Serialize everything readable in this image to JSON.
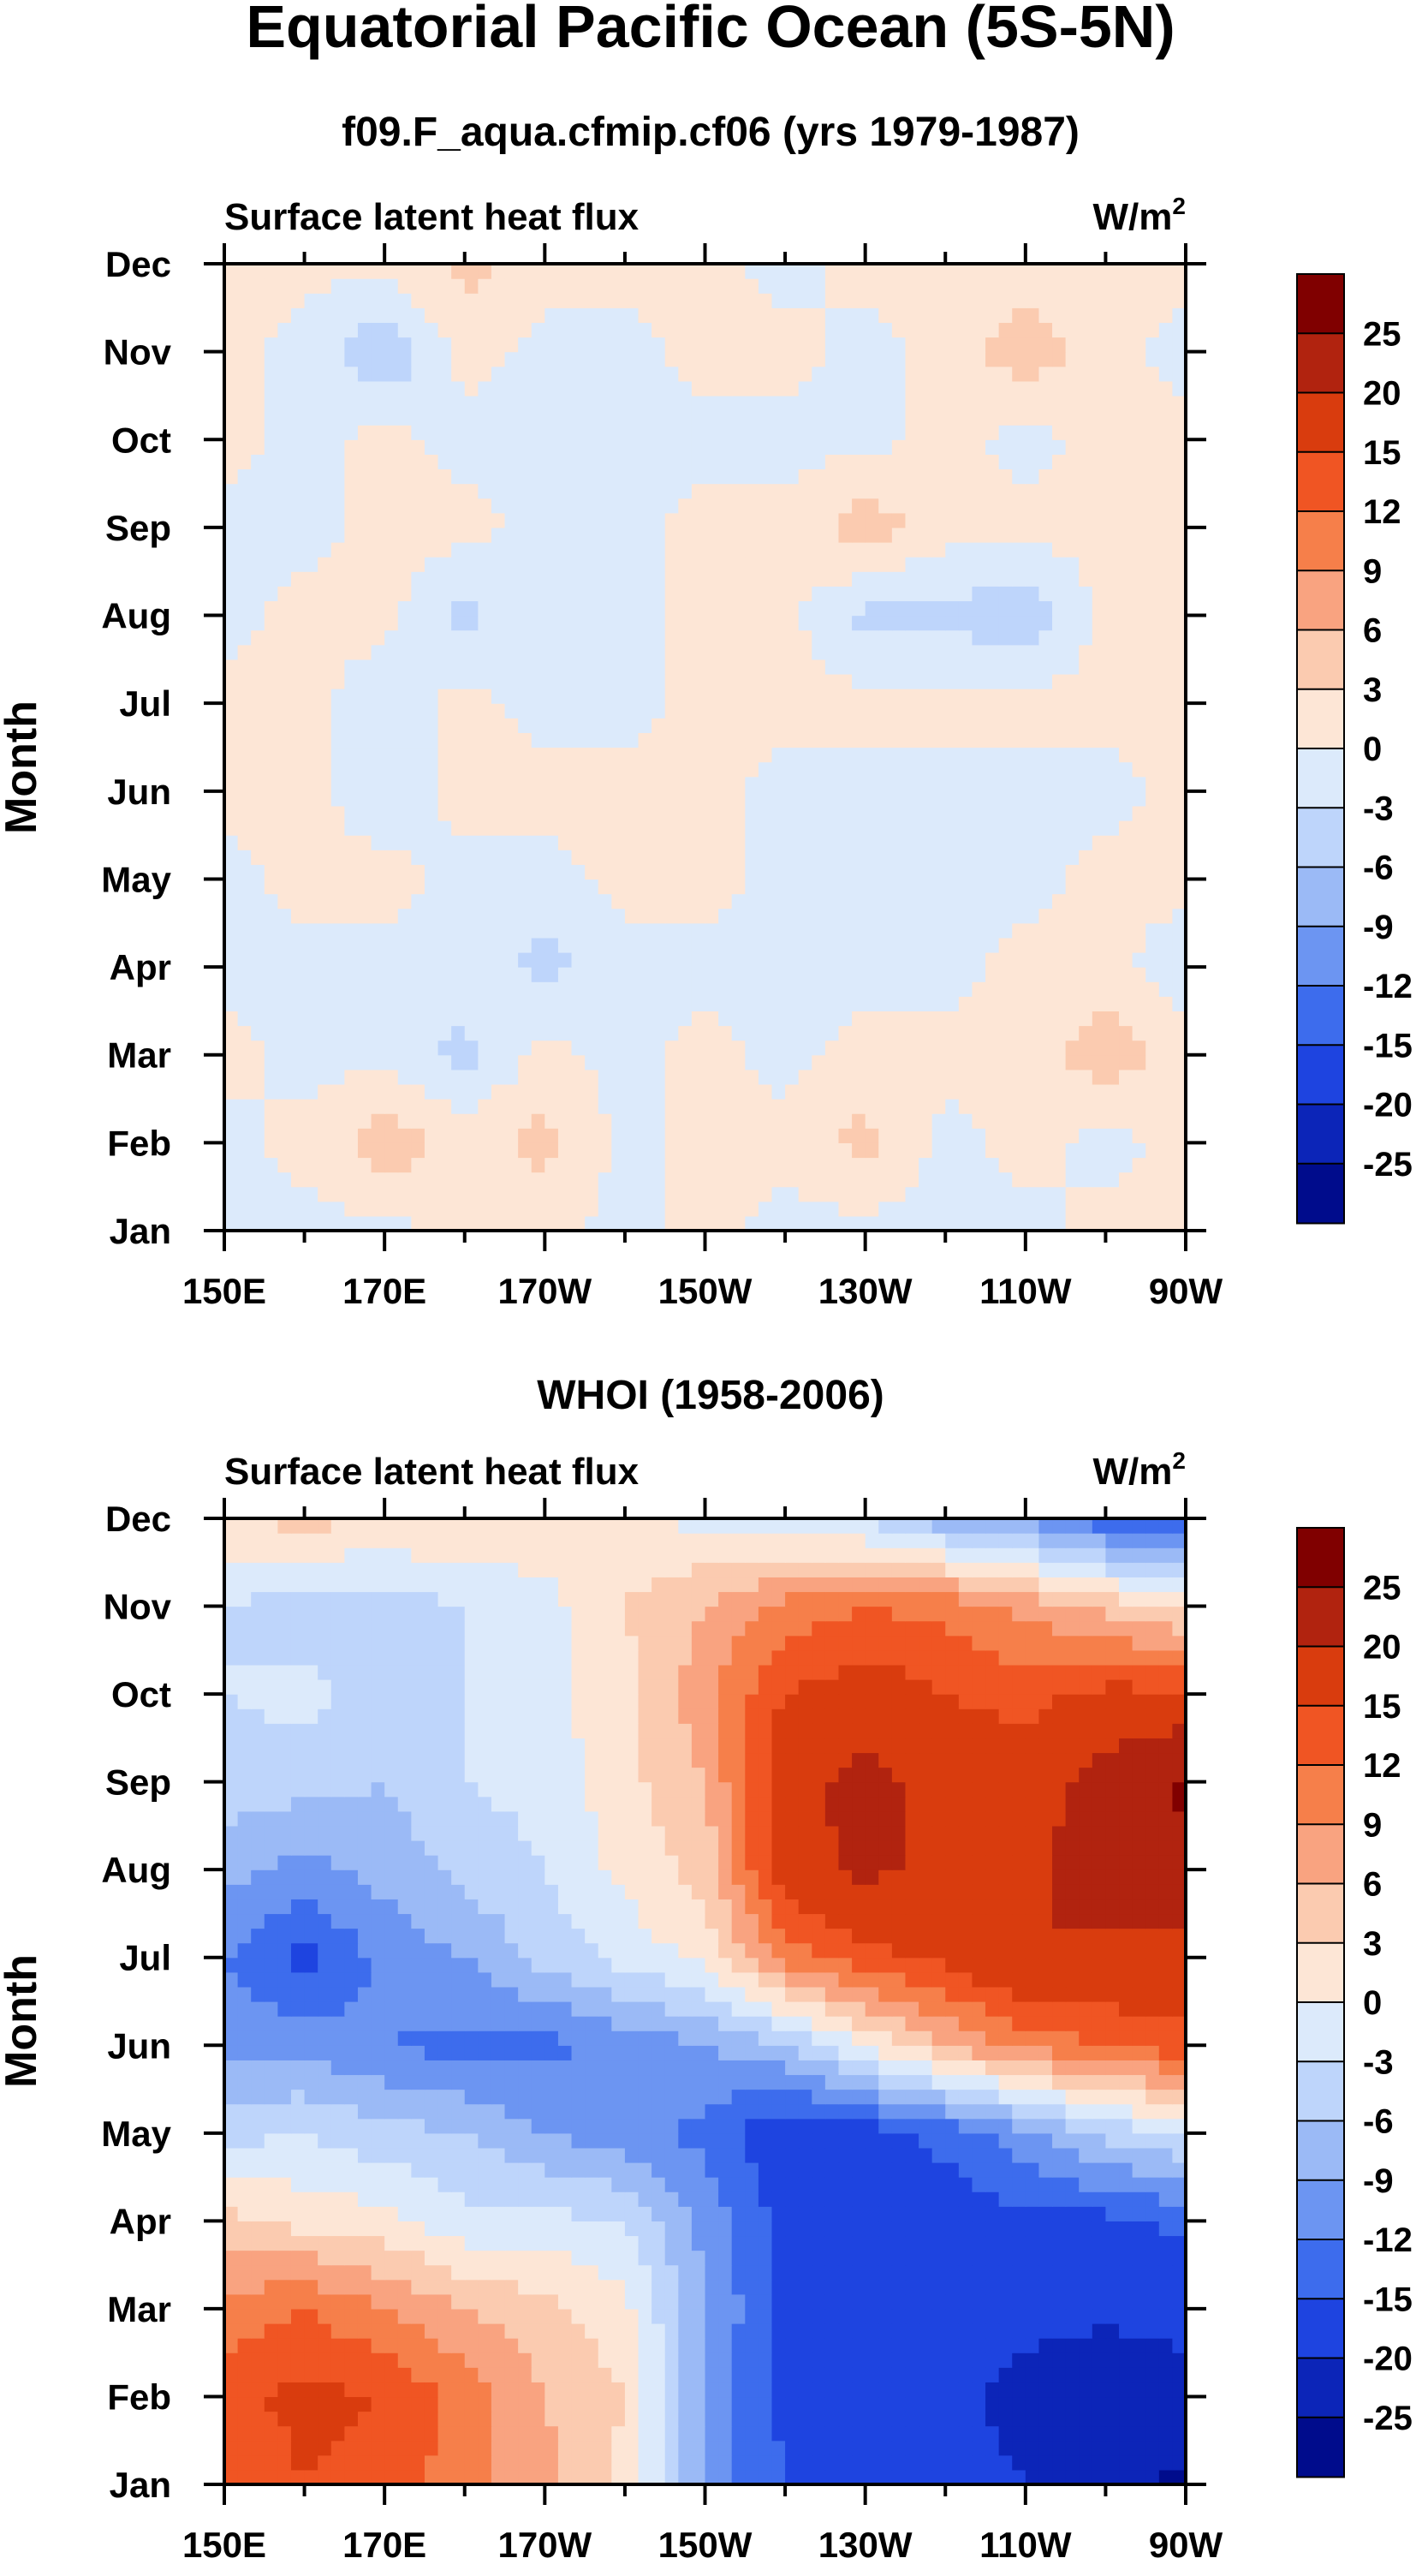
{
  "figure": {
    "title": "Equatorial Pacific Ocean (5S-5N)"
  },
  "colorbar": {
    "levels": [
      "25",
      "20",
      "15",
      "12",
      "9",
      "6",
      "3",
      "0",
      "-3",
      "-6",
      "-9",
      "-12",
      "-15",
      "-20",
      "-25"
    ],
    "colors": [
      "#800000",
      "#b1230f",
      "#d93c0e",
      "#f05523",
      "#f67f4a",
      "#f9a380",
      "#fbcbb0",
      "#fde6d6",
      "#dceafb",
      "#bed5fb",
      "#9bbaf6",
      "#6c95f2",
      "#3d6ced",
      "#1e44e0",
      "#0c25b8",
      "#000c8c"
    ]
  },
  "chart_data": [
    {
      "type": "heatmap",
      "title": "f09.F_aqua.cfmip.cf06 (yrs 1979-1987)",
      "left_string": "Surface latent heat flux",
      "right_string": "W/m",
      "right_sup": "2",
      "ylabel": "Month",
      "xlabel": "",
      "x_ticks": [
        "150E",
        "170E",
        "170W",
        "150W",
        "130W",
        "110W",
        "90W"
      ],
      "y_ticks": [
        "Jan",
        "Feb",
        "Mar",
        "Apr",
        "May",
        "Jun",
        "Jul",
        "Aug",
        "Sep",
        "Oct",
        "Nov",
        "Dec"
      ],
      "x_range_deg_lon": [
        150,
        270
      ],
      "x": [
        150,
        160,
        170,
        180,
        190,
        200,
        210,
        220,
        230,
        240,
        250,
        260,
        270
      ],
      "y": [
        "Jan",
        "Feb",
        "Mar",
        "Apr",
        "May",
        "Jun",
        "Jul",
        "Aug",
        "Sep",
        "Oct",
        "Nov",
        "Dec"
      ],
      "z": [
        [
          -1,
          -1,
          -1,
          1,
          1,
          -1,
          1,
          -1,
          -1,
          -1,
          -1,
          1,
          1
        ],
        [
          -1,
          1,
          5,
          2,
          4,
          -1,
          1,
          1,
          4,
          -1,
          1,
          -1,
          1
        ],
        [
          1,
          -1,
          -1,
          -4,
          1,
          -1,
          1,
          -1,
          1,
          1,
          1,
          5,
          1
        ],
        [
          -1,
          -1,
          -1,
          -1,
          -4,
          -1,
          -1,
          -1,
          -1,
          -1,
          1,
          1,
          -2
        ],
        [
          -1,
          1,
          1,
          -1,
          -1,
          1,
          1,
          -1,
          -1,
          -1,
          -1,
          1,
          1
        ],
        [
          1,
          1,
          -2,
          1,
          1,
          1,
          1,
          -1,
          -1,
          -1,
          -1,
          -1,
          1
        ],
        [
          1,
          1,
          -2,
          1,
          -1,
          -1,
          1,
          1,
          1,
          1,
          1,
          1,
          1
        ],
        [
          -1,
          1,
          1,
          -4,
          -1,
          -1,
          1,
          1,
          -4,
          -4,
          -5,
          1,
          1
        ],
        [
          -1,
          -1,
          1,
          1,
          -1,
          -1,
          1,
          1,
          5,
          1,
          1,
          1,
          1
        ],
        [
          1,
          -1,
          1,
          -1,
          -1,
          -1,
          -1,
          -1,
          -1,
          1,
          -1,
          1,
          1
        ],
        [
          1,
          -1,
          -6,
          1,
          -1,
          -1,
          1,
          1,
          -1,
          1,
          5,
          1,
          -1
        ],
        [
          1,
          1,
          1,
          4,
          1,
          1,
          1,
          -1,
          1,
          1,
          1,
          1,
          1
        ]
      ]
    },
    {
      "type": "heatmap",
      "title": "WHOI (1958-2006)",
      "left_string": "Surface latent heat flux",
      "right_string": "W/m",
      "right_sup": "2",
      "ylabel": "Month",
      "xlabel": "",
      "x_ticks": [
        "150E",
        "170E",
        "170W",
        "150W",
        "130W",
        "110W",
        "90W"
      ],
      "y_ticks": [
        "Jan",
        "Feb",
        "Mar",
        "Apr",
        "May",
        "Jun",
        "Jul",
        "Aug",
        "Sep",
        "Oct",
        "Nov",
        "Dec"
      ],
      "x_range_deg_lon": [
        150,
        270
      ],
      "x": [
        150,
        160,
        170,
        180,
        190,
        200,
        210,
        220,
        230,
        240,
        250,
        260,
        270
      ],
      "y": [
        "Jan",
        "Feb",
        "Mar",
        "Apr",
        "May",
        "Jun",
        "Jul",
        "Aug",
        "Sep",
        "Oct",
        "Nov",
        "Dec"
      ],
      "z": [
        [
          12,
          15,
          14,
          10,
          7,
          2,
          -10,
          -15,
          -18,
          -18,
          -20,
          -23,
          -26
        ],
        [
          14,
          16,
          15,
          11,
          6,
          3,
          -10,
          -16,
          -20,
          -18,
          -22,
          -24,
          -22
        ],
        [
          10,
          12,
          9,
          6,
          4,
          1,
          -9,
          -16,
          -19,
          -19,
          -18,
          -19,
          -18
        ],
        [
          4,
          2,
          1,
          -2,
          -2,
          -3,
          -10,
          -16,
          -19,
          -17,
          -16,
          -16,
          -14
        ],
        [
          -4,
          -3,
          -5,
          -6,
          -9,
          -11,
          -13,
          -18,
          -17,
          -14,
          -10,
          -5,
          -3
        ],
        [
          -10,
          -10,
          -12,
          -13,
          -13,
          -11,
          -9,
          -6,
          0,
          6,
          10,
          12,
          14
        ],
        [
          -12,
          -16,
          -11,
          -9,
          -5,
          -2,
          1,
          10,
          14,
          16,
          20,
          19,
          18
        ],
        [
          -8,
          -10,
          -8,
          -5,
          -3,
          1,
          4,
          18,
          21,
          19,
          19,
          23,
          24
        ],
        [
          -4,
          -5,
          -6,
          -3,
          -2,
          2,
          6,
          18,
          22,
          18,
          17,
          22,
          26
        ],
        [
          -3,
          -2,
          -4,
          -3,
          -1,
          2,
          8,
          15,
          17,
          15,
          14,
          16,
          16
        ],
        [
          -3,
          -5,
          -5,
          -3,
          -1,
          3,
          6,
          10,
          12,
          11,
          8,
          5,
          2
        ],
        [
          3,
          4,
          3,
          3,
          2,
          1,
          -1,
          -2,
          -4,
          -8,
          -10,
          -14,
          -16
        ]
      ]
    }
  ]
}
